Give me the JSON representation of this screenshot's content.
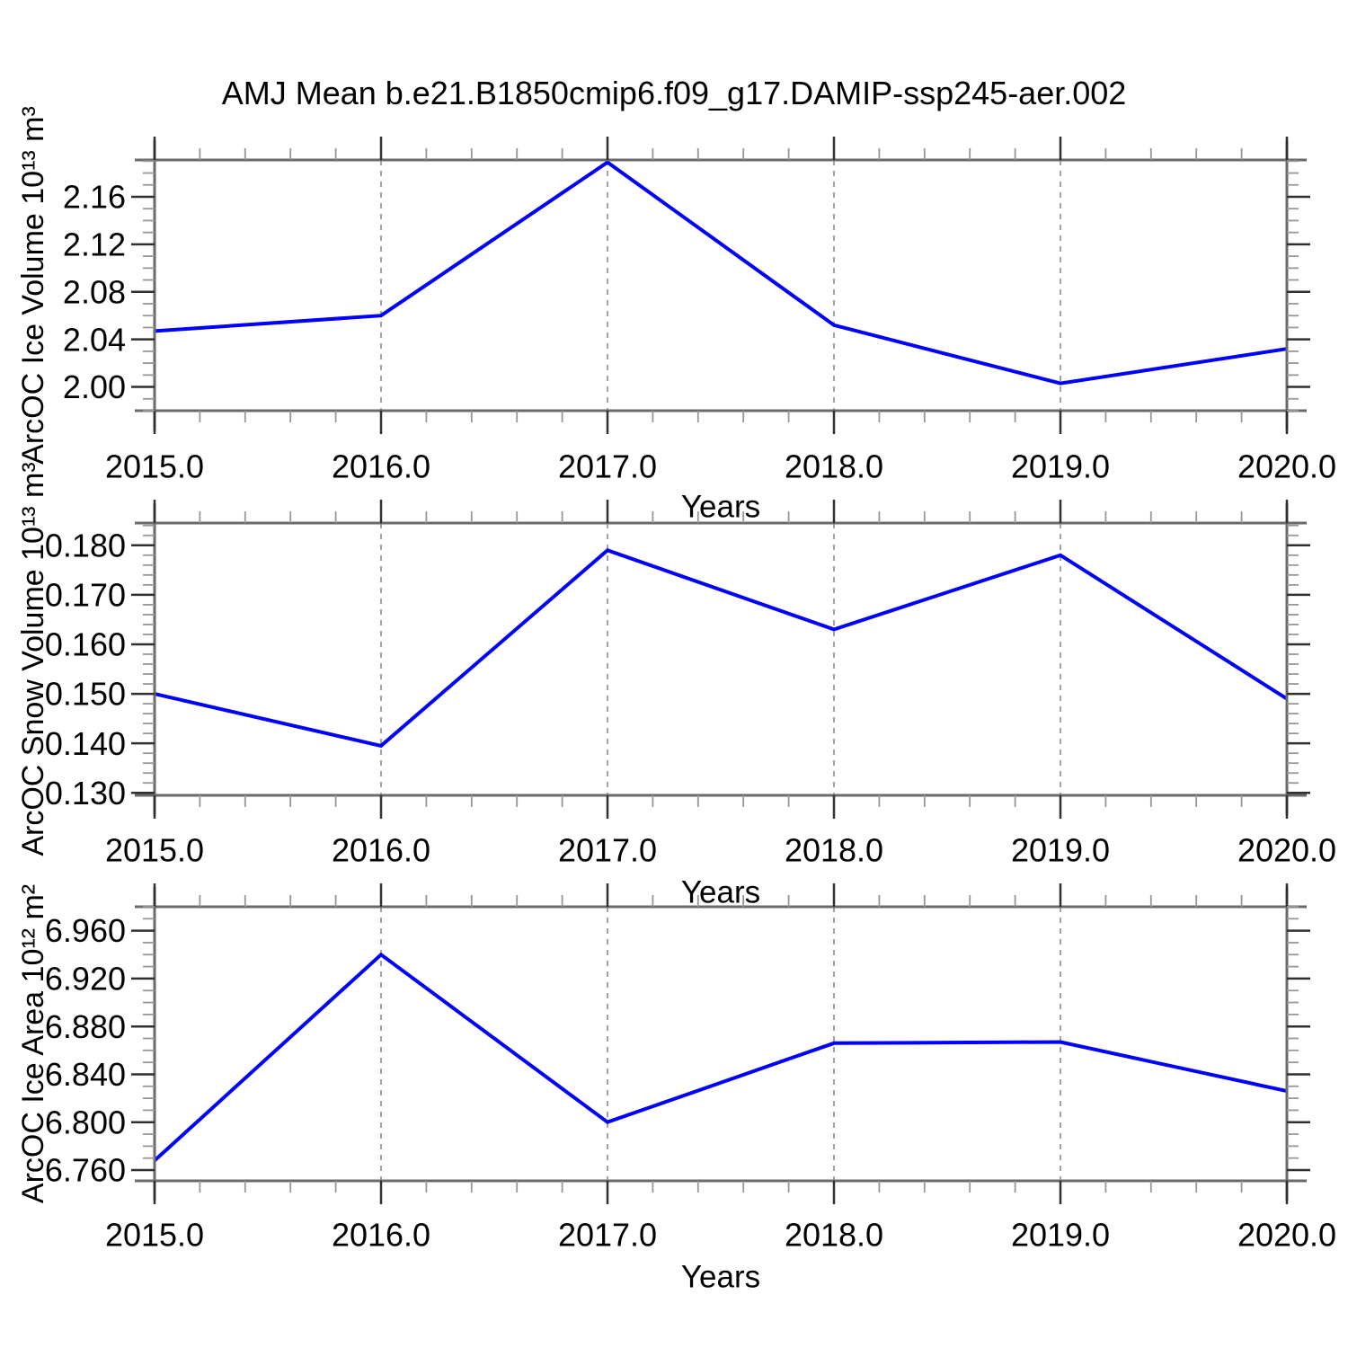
{
  "title": "AMJ Mean b.e21.B1850cmip6.f09_g17.DAMIP-ssp245-aer.002",
  "style": {
    "background": "#ffffff",
    "text_color": "#000000",
    "line_color": "#0000ff",
    "grid_color": "#999999",
    "frame_color": "#6a6a6a",
    "major_tick_color": "#303030",
    "minor_tick_color": "#979797"
  },
  "chart_data": [
    {
      "id": "ice-volume",
      "type": "line",
      "title": "",
      "xlabel": "Years",
      "ylabel": "ArcOC Ice Volume 10¹³ m³",
      "x": [
        2015,
        2016,
        2017,
        2018,
        2019,
        2020
      ],
      "series": [
        {
          "name": "ArcOC Ice Volume",
          "color": "#0000ff",
          "values": [
            2.047,
            2.06,
            2.189,
            2.052,
            2.003,
            2.032
          ]
        }
      ],
      "xlim": [
        2015.0,
        2020.0
      ],
      "ylim": [
        1.98,
        2.191
      ],
      "xticks": [
        2015,
        2016,
        2017,
        2018,
        2019,
        2020
      ],
      "xtick_labels": [
        "2015.0",
        "2016.0",
        "2017.0",
        "2018.0",
        "2019.0",
        "2020.0"
      ],
      "yticks": [
        2.0,
        2.04,
        2.08,
        2.12,
        2.16
      ],
      "ytick_labels": [
        "2.00",
        "2.04",
        "2.08",
        "2.12",
        "2.16"
      ],
      "x_minor_step": 0.2,
      "y_minor_step": 0.01,
      "vertical_gridlines": [
        2016,
        2017,
        2018,
        2019
      ],
      "grid": "vertical-dashed",
      "legend": "none"
    },
    {
      "id": "snow-volume",
      "type": "line",
      "title": "",
      "xlabel": "Years",
      "ylabel": "ArcOC Snow Volume 10¹³ m³",
      "x": [
        2015,
        2016,
        2017,
        2018,
        2019,
        2020
      ],
      "series": [
        {
          "name": "ArcOC Snow Volume",
          "color": "#0000ff",
          "values": [
            0.15,
            0.1395,
            0.179,
            0.163,
            0.178,
            0.149
          ]
        }
      ],
      "xlim": [
        2015.0,
        2020.0
      ],
      "ylim": [
        0.1295,
        0.1845
      ],
      "xticks": [
        2015,
        2016,
        2017,
        2018,
        2019,
        2020
      ],
      "xtick_labels": [
        "2015.0",
        "2016.0",
        "2017.0",
        "2018.0",
        "2019.0",
        "2020.0"
      ],
      "yticks": [
        0.13,
        0.14,
        0.15,
        0.16,
        0.17,
        0.18
      ],
      "ytick_labels": [
        "0.130",
        "0.140",
        "0.150",
        "0.160",
        "0.170",
        "0.180"
      ],
      "x_minor_step": 0.2,
      "y_minor_step": 0.002,
      "vertical_gridlines": [
        2016,
        2017,
        2018,
        2019
      ],
      "grid": "vertical-dashed",
      "legend": "none"
    },
    {
      "id": "ice-area",
      "type": "line",
      "title": "",
      "xlabel": "Years",
      "ylabel": "ArcOC Ice Area 10¹² m²",
      "x": [
        2015,
        2016,
        2017,
        2018,
        2019,
        2020
      ],
      "series": [
        {
          "name": "ArcOC Ice Area",
          "color": "#0000ff",
          "values": [
            6.768,
            6.94,
            6.8,
            6.866,
            6.867,
            6.826
          ]
        }
      ],
      "xlim": [
        2015.0,
        2020.0
      ],
      "ylim": [
        6.751,
        6.98
      ],
      "xticks": [
        2015,
        2016,
        2017,
        2018,
        2019,
        2020
      ],
      "xtick_labels": [
        "2015.0",
        "2016.0",
        "2017.0",
        "2018.0",
        "2019.0",
        "2020.0"
      ],
      "yticks": [
        6.76,
        6.8,
        6.84,
        6.88,
        6.92,
        6.96
      ],
      "ytick_labels": [
        "6.760",
        "6.800",
        "6.840",
        "6.880",
        "6.920",
        "6.960"
      ],
      "x_minor_step": 0.2,
      "y_minor_step": 0.01,
      "vertical_gridlines": [
        2016,
        2017,
        2018,
        2019
      ],
      "grid": "vertical-dashed",
      "legend": "none"
    }
  ]
}
